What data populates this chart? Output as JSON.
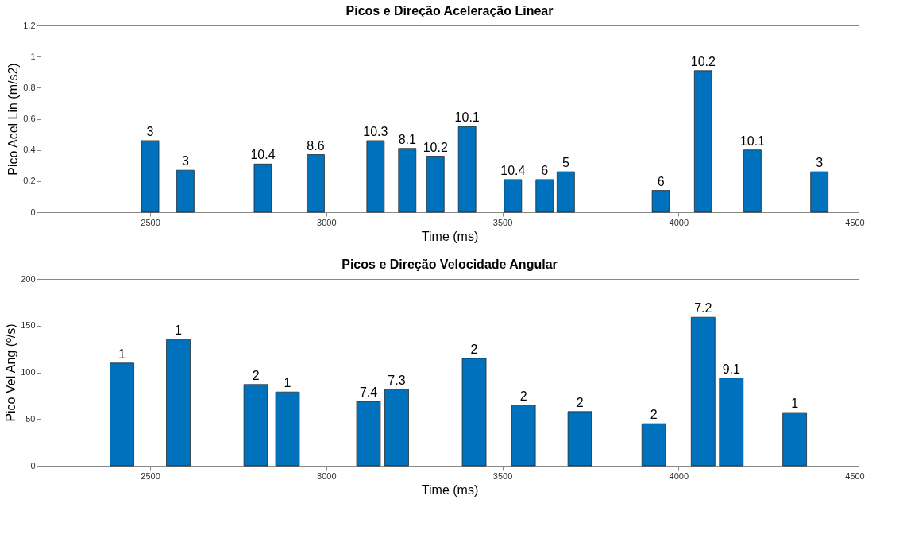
{
  "chart_data": [
    {
      "type": "bar",
      "title": "Picos e Direção Aceleração Linear",
      "xlabel": "Time (ms)",
      "ylabel": "Pico Acel Lin (m/s2)",
      "x": [
        2500,
        2600,
        2820,
        2970,
        3140,
        3230,
        3310,
        3400,
        3530,
        3620,
        3680,
        3950,
        4070,
        4210,
        4400
      ],
      "series": [
        {
          "color": "#0072bd",
          "values": [
            0.46,
            0.27,
            0.31,
            0.37,
            0.46,
            0.41,
            0.36,
            0.55,
            0.21,
            0.21,
            0.26,
            0.14,
            0.91,
            0.4,
            0.26
          ]
        }
      ],
      "annotations": [
        {
          "text": "3",
          "x": 2500,
          "y": 0.46
        },
        {
          "text": "3",
          "x": 2600,
          "y": 0.27
        },
        {
          "text": "10.4",
          "x": 2820,
          "y": 0.31
        },
        {
          "text": "8.6",
          "x": 2970,
          "y": 0.37
        },
        {
          "text": "10.3",
          "x": 3140,
          "y": 0.46
        },
        {
          "text": "8.1",
          "x": 3230,
          "y": 0.41
        },
        {
          "text": "10.2",
          "x": 3310,
          "y": 0.36
        },
        {
          "text": "10.1",
          "x": 3400,
          "y": 0.55
        },
        {
          "text": "10.4",
          "x": 3530,
          "y": 0.21
        },
        {
          "text": "6",
          "x": 3620,
          "y": 0.21
        },
        {
          "text": "5",
          "x": 3680,
          "y": 0.26
        },
        {
          "text": "6",
          "x": 3950,
          "y": 0.14
        },
        {
          "text": "10.2",
          "x": 4070,
          "y": 0.91
        },
        {
          "text": "10.1",
          "x": 4210,
          "y": 0.4
        },
        {
          "text": "3",
          "x": 4400,
          "y": 0.26
        }
      ],
      "xlim": [
        2200,
        4500
      ],
      "xticks": [
        2500,
        3000,
        3500,
        4000,
        4500
      ],
      "ylim": [
        0,
        1.2
      ],
      "yticks": [
        0,
        0.2,
        0.4,
        0.6,
        0.8,
        1,
        1.2
      ],
      "grid": false
    },
    {
      "type": "bar",
      "title": "Picos e Direção Velocidade Angular",
      "xlabel": "Time (ms)",
      "ylabel": "Pico Vel Ang (º/s)",
      "x": [
        2420,
        2580,
        2800,
        2890,
        3120,
        3200,
        3420,
        3560,
        3720,
        3930,
        4070,
        4150,
        4330
      ],
      "series": [
        {
          "color": "#0072bd",
          "values": [
            110,
            135,
            87,
            79,
            69,
            82,
            115,
            65,
            58,
            45,
            159,
            94,
            57
          ]
        }
      ],
      "annotations": [
        {
          "text": "1",
          "x": 2420,
          "y": 110
        },
        {
          "text": "1",
          "x": 2580,
          "y": 135
        },
        {
          "text": "2",
          "x": 2800,
          "y": 87
        },
        {
          "text": "1",
          "x": 2890,
          "y": 79
        },
        {
          "text": "7.4",
          "x": 3120,
          "y": 69
        },
        {
          "text": "7.3",
          "x": 3200,
          "y": 82
        },
        {
          "text": "2",
          "x": 3420,
          "y": 115
        },
        {
          "text": "2",
          "x": 3560,
          "y": 65
        },
        {
          "text": "2",
          "x": 3720,
          "y": 58
        },
        {
          "text": "2",
          "x": 3930,
          "y": 45
        },
        {
          "text": "7.2",
          "x": 4070,
          "y": 159
        },
        {
          "text": "9.1",
          "x": 4150,
          "y": 94
        },
        {
          "text": "1",
          "x": 4330,
          "y": 57
        }
      ],
      "xlim": [
        2200,
        4500
      ],
      "xticks": [
        2500,
        3000,
        3500,
        4000,
        4500
      ],
      "ylim": [
        0,
        200
      ],
      "yticks": [
        0,
        50,
        100,
        150,
        200
      ],
      "grid": false
    }
  ]
}
